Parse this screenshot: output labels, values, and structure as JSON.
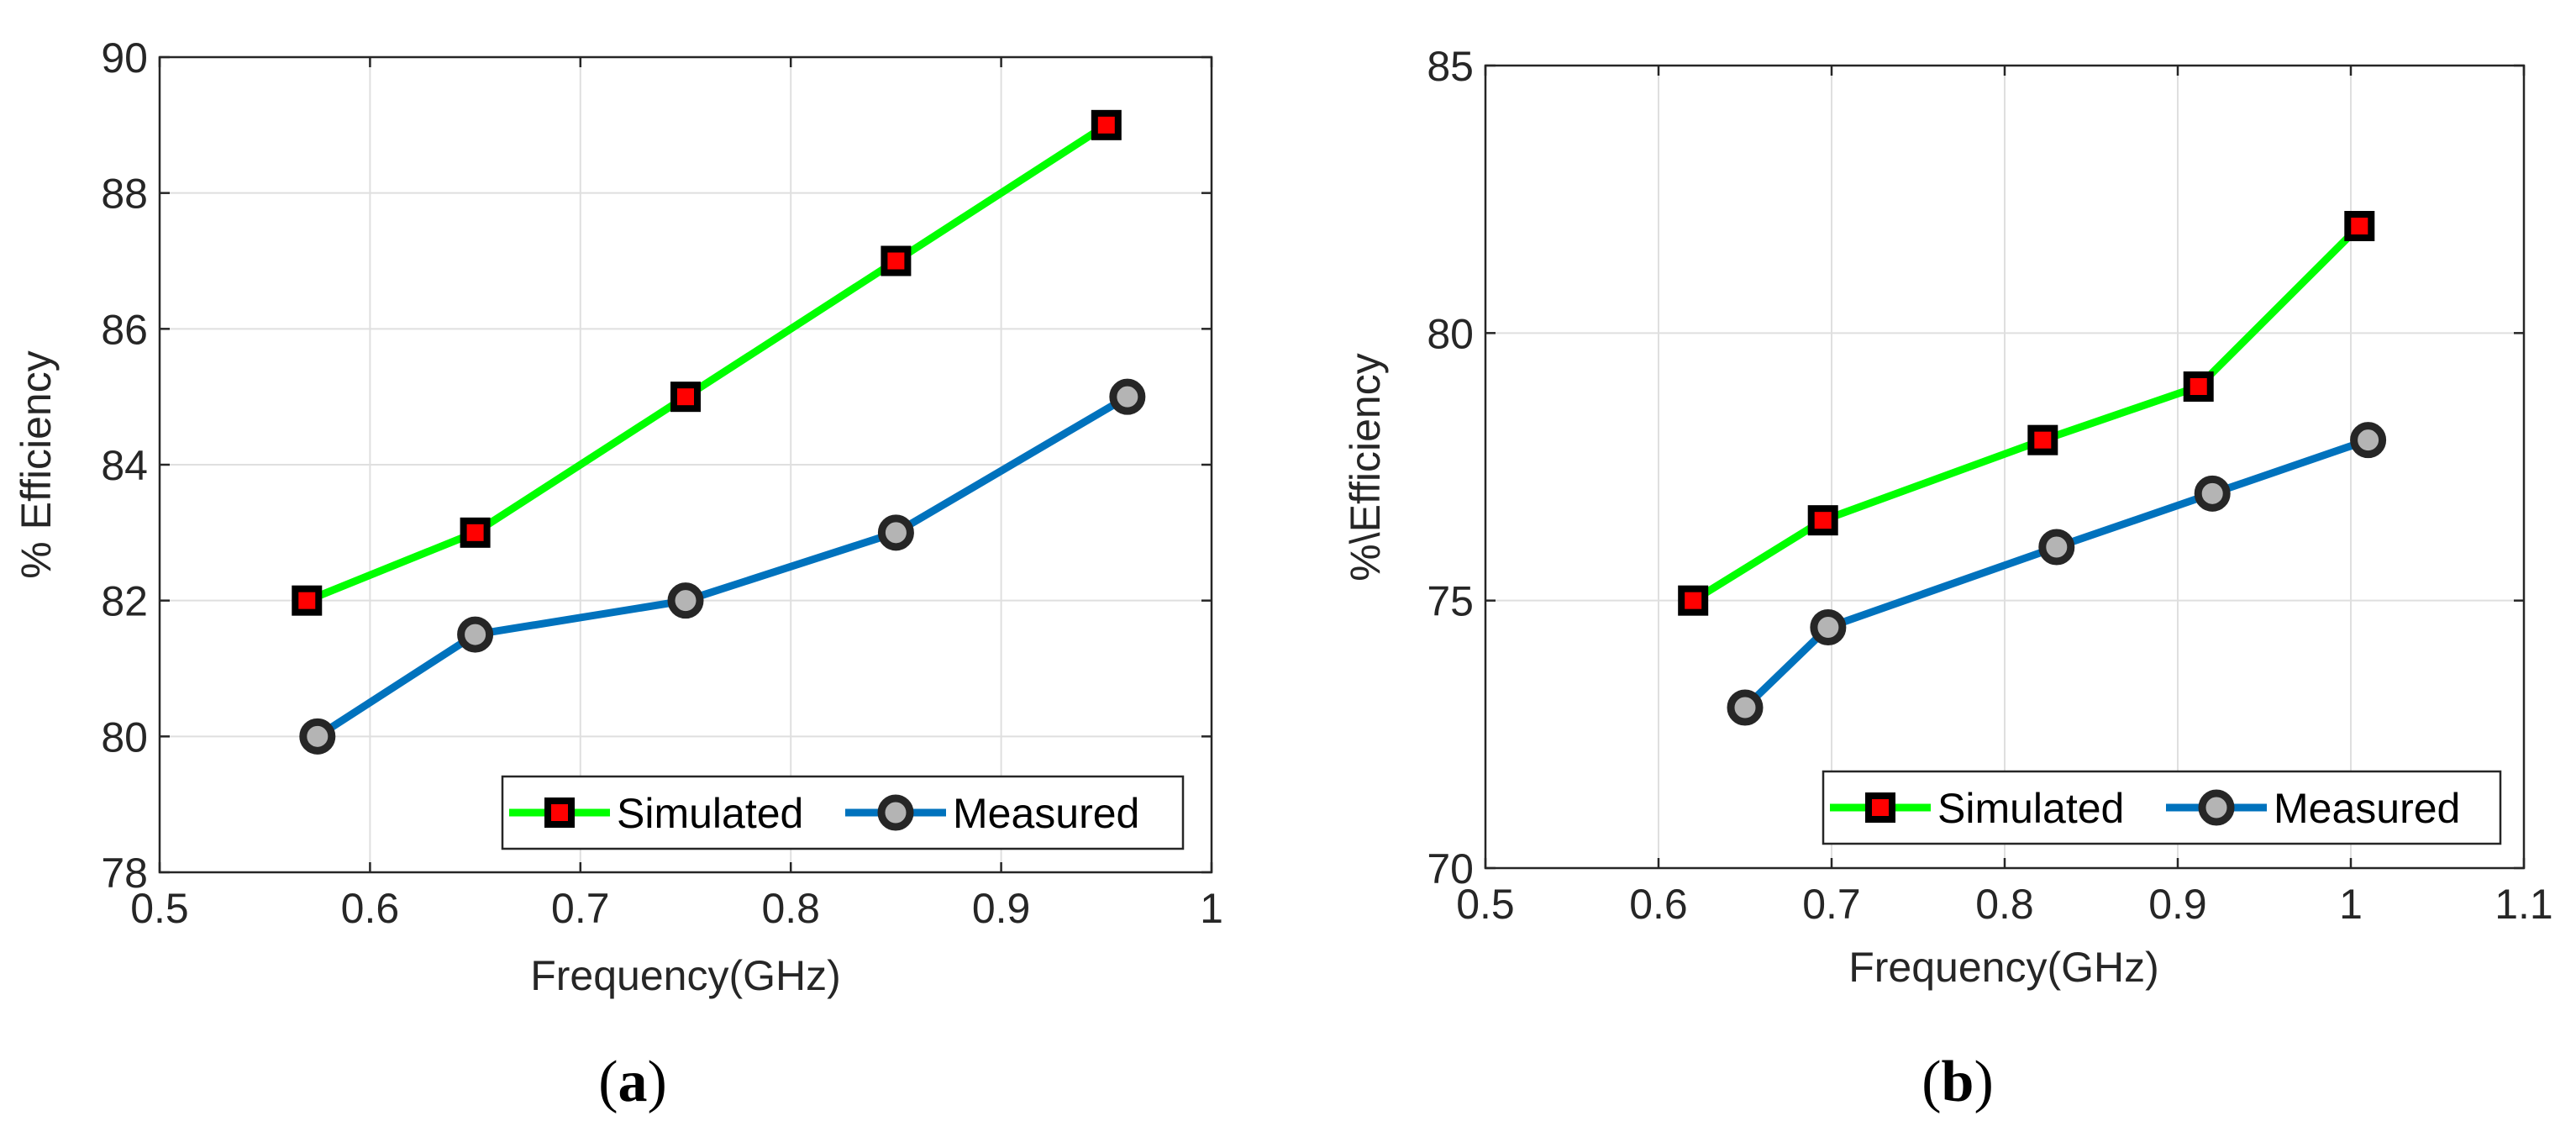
{
  "chart_data": [
    {
      "type": "line",
      "caption_letter": "a",
      "xlabel": "Frequency(GHz)",
      "ylabel": "% Efficiency",
      "xlim": [
        0.5,
        1
      ],
      "ylim": [
        78,
        90
      ],
      "xticks": [
        "0.5",
        "0.6",
        "0.7",
        "0.8",
        "0.9",
        "1"
      ],
      "yticks": [
        "78",
        "80",
        "82",
        "84",
        "86",
        "88",
        "90"
      ],
      "grid": true,
      "legend_position": "bottom-right",
      "series": [
        {
          "name": "Simulated",
          "color": "#00ff00",
          "marker": "square",
          "x": [
            0.57,
            0.65,
            0.75,
            0.85,
            0.95
          ],
          "y": [
            82,
            83,
            85,
            87,
            89
          ]
        },
        {
          "name": "Measured",
          "color": "#0072bd",
          "marker": "circle",
          "x": [
            0.575,
            0.65,
            0.75,
            0.85,
            0.96
          ],
          "y": [
            80,
            81.5,
            82,
            83,
            85
          ]
        }
      ]
    },
    {
      "type": "line",
      "caption_letter": "b",
      "xlabel": "Frequency(GHz)",
      "ylabel": "%\\Efficiency",
      "xlim": [
        0.5,
        1.1
      ],
      "ylim": [
        70,
        85
      ],
      "xticks": [
        "0.5",
        "0.6",
        "0.7",
        "0.8",
        "0.9",
        "1",
        "1.1"
      ],
      "yticks": [
        "70",
        "75",
        "80",
        "85"
      ],
      "grid": true,
      "legend_position": "bottom-right",
      "series": [
        {
          "name": "Simulated",
          "color": "#00ff00",
          "marker": "square",
          "x": [
            0.62,
            0.695,
            0.822,
            0.912,
            1.005
          ],
          "y": [
            75,
            76.5,
            78,
            79,
            82
          ]
        },
        {
          "name": "Measured",
          "color": "#0072bd",
          "marker": "circle",
          "x": [
            0.65,
            0.698,
            0.83,
            0.92,
            1.01
          ],
          "y": [
            73,
            74.5,
            76,
            77,
            78
          ]
        }
      ]
    }
  ]
}
